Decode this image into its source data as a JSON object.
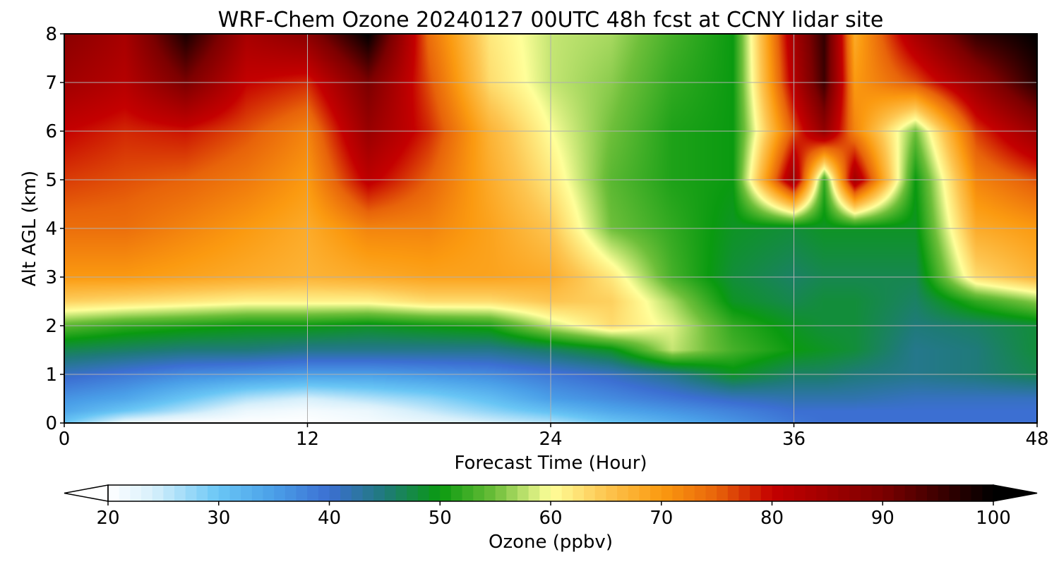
{
  "chart_data": {
    "type": "heatmap",
    "title": "WRF-Chem Ozone  20240127 00UTC 48h fcst at CCNY lidar site",
    "xlabel": "Forecast Time (Hour)",
    "ylabel": "Alt AGL (km)",
    "xlim": [
      0,
      48
    ],
    "ylim": [
      0,
      8
    ],
    "xticks": [
      "0",
      "12",
      "24",
      "36",
      "48"
    ],
    "yticks": [
      "0",
      "1",
      "2",
      "3",
      "4",
      "5",
      "6",
      "7",
      "8"
    ],
    "grid": true,
    "x": [
      0,
      3,
      6,
      9,
      12,
      15,
      18,
      21,
      24,
      27,
      30,
      33,
      36,
      37.5,
      39,
      42,
      45,
      48
    ],
    "y": [
      0,
      0.25,
      0.5,
      1,
      1.5,
      2,
      2.5,
      3,
      4,
      5,
      6,
      7,
      8
    ],
    "values": [
      [
        30,
        22,
        20,
        20,
        20,
        21,
        22,
        24,
        26,
        30,
        33,
        36,
        39,
        40,
        40,
        40,
        40,
        40
      ],
      [
        34,
        30,
        26,
        22,
        21,
        22,
        25,
        28,
        31,
        34,
        36,
        38,
        40,
        40,
        40,
        40,
        40,
        40
      ],
      [
        36,
        34,
        30,
        26,
        24,
        26,
        28,
        31,
        35,
        37,
        39,
        41,
        42,
        42,
        42,
        41,
        41,
        41
      ],
      [
        41,
        39,
        37,
        36,
        35,
        35,
        36,
        37,
        39,
        41,
        44,
        49,
        46,
        46,
        45,
        44,
        45,
        47
      ],
      [
        47,
        46,
        45,
        45,
        44,
        44,
        44,
        44,
        46,
        49,
        58,
        53,
        50,
        49,
        48,
        44,
        45,
        48
      ],
      [
        54,
        52,
        51,
        50,
        50,
        49,
        50,
        51,
        58,
        63,
        59,
        52,
        49,
        48,
        48,
        45,
        46,
        48
      ],
      [
        64,
        63,
        62,
        61,
        61,
        61,
        63,
        63,
        65,
        64,
        57,
        49,
        47,
        48,
        48,
        46,
        52,
        56
      ],
      [
        70,
        70,
        69,
        68,
        67,
        68,
        69,
        69,
        68,
        62,
        53,
        48,
        46,
        47,
        47,
        47,
        63,
        67
      ],
      [
        74,
        74,
        72,
        70,
        68,
        72,
        72,
        69,
        65,
        55,
        52,
        49,
        48,
        49,
        49,
        49,
        68,
        70
      ],
      [
        77,
        76,
        75,
        73,
        70,
        81,
        75,
        68,
        62,
        54,
        51,
        50,
        86,
        52,
        85,
        50,
        72,
        76
      ],
      [
        80,
        78,
        79,
        76,
        72,
        86,
        78,
        67,
        60,
        55,
        51,
        50,
        76,
        87,
        72,
        55,
        77,
        86
      ],
      [
        85,
        82,
        90,
        80,
        78,
        90,
        76,
        63,
        58,
        56,
        52,
        50,
        82,
        95,
        70,
        76,
        86,
        97
      ],
      [
        88,
        84,
        98,
        84,
        88,
        100,
        74,
        62,
        58,
        57,
        53,
        50,
        84,
        96,
        68,
        84,
        96,
        100
      ]
    ],
    "colorbar": {
      "label": "Ozone  (ppbv)",
      "min": 20,
      "max": 100,
      "ticks": [
        "20",
        "30",
        "40",
        "50",
        "60",
        "70",
        "80",
        "90",
        "100"
      ],
      "extend": "both",
      "colors": [
        {
          "v": 20,
          "c": "#ffffff"
        },
        {
          "v": 24,
          "c": "#d8f0fb"
        },
        {
          "v": 30,
          "c": "#69c6f5"
        },
        {
          "v": 35,
          "c": "#4a9fe8"
        },
        {
          "v": 40,
          "c": "#3c6fd2"
        },
        {
          "v": 45,
          "c": "#1f7a7a"
        },
        {
          "v": 50,
          "c": "#0a9a10"
        },
        {
          "v": 55,
          "c": "#6ebf3a"
        },
        {
          "v": 60,
          "c": "#ffff9a"
        },
        {
          "v": 65,
          "c": "#fdc550"
        },
        {
          "v": 70,
          "c": "#fb9a10"
        },
        {
          "v": 75,
          "c": "#e8640a"
        },
        {
          "v": 80,
          "c": "#c40000"
        },
        {
          "v": 90,
          "c": "#7c0000"
        },
        {
          "v": 100,
          "c": "#000000"
        }
      ]
    }
  }
}
